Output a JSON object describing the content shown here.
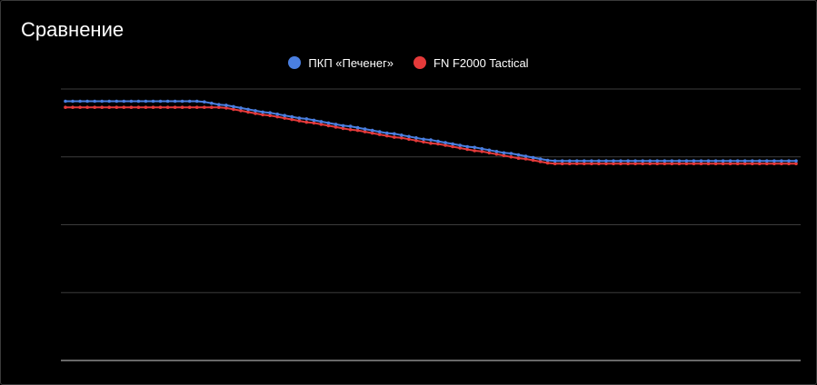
{
  "header": {
    "title": "Сравнение"
  },
  "chart_data": {
    "type": "line",
    "title": "Сравнение",
    "xlabel": "",
    "ylabel": "",
    "ylim": [
      0,
      4
    ],
    "grid": true,
    "legend": "top-center",
    "x": [
      0,
      1,
      2,
      3,
      4,
      5,
      6,
      7,
      8,
      9,
      10,
      11,
      12,
      13,
      14,
      15,
      16,
      17,
      18,
      19,
      20,
      21,
      22,
      23,
      24,
      25,
      26,
      27,
      28,
      29,
      30,
      31,
      32,
      33,
      34,
      35,
      36,
      37,
      38,
      39,
      40,
      41,
      42,
      43,
      44,
      45,
      46,
      47,
      48,
      49,
      50,
      51,
      52,
      53,
      54,
      55,
      56,
      57,
      58,
      59,
      60,
      61,
      62,
      63,
      64,
      65,
      66,
      67,
      68,
      69,
      70,
      71,
      72,
      73,
      74,
      75,
      76,
      77,
      78,
      79,
      80,
      81,
      82,
      83,
      84,
      85,
      86,
      87,
      88,
      89,
      90,
      91,
      92,
      93,
      94,
      95,
      96,
      97,
      98,
      99,
      100
    ],
    "series": [
      {
        "name": "ПКП «Печенег»",
        "color": "#4a7fe0",
        "values": [
          3.82,
          3.82,
          3.82,
          3.82,
          3.82,
          3.82,
          3.82,
          3.82,
          3.82,
          3.82,
          3.82,
          3.82,
          3.82,
          3.82,
          3.82,
          3.82,
          3.82,
          3.82,
          3.82,
          3.81,
          3.79,
          3.77,
          3.76,
          3.74,
          3.72,
          3.7,
          3.68,
          3.66,
          3.65,
          3.63,
          3.61,
          3.59,
          3.57,
          3.56,
          3.54,
          3.52,
          3.5,
          3.48,
          3.46,
          3.45,
          3.43,
          3.41,
          3.39,
          3.37,
          3.35,
          3.34,
          3.32,
          3.3,
          3.28,
          3.26,
          3.25,
          3.23,
          3.21,
          3.19,
          3.17,
          3.15,
          3.14,
          3.12,
          3.1,
          3.08,
          3.06,
          3.05,
          3.03,
          3.01,
          2.99,
          2.97,
          2.95,
          2.94,
          2.94,
          2.94,
          2.94,
          2.94,
          2.94,
          2.94,
          2.94,
          2.94,
          2.94,
          2.94,
          2.94,
          2.94,
          2.94,
          2.94,
          2.94,
          2.94,
          2.94,
          2.94,
          2.94,
          2.94,
          2.94,
          2.94,
          2.94,
          2.94,
          2.94,
          2.94,
          2.94,
          2.94,
          2.94,
          2.94,
          2.94,
          2.94,
          2.94
        ]
      },
      {
        "name": "FN F2000 Tactical",
        "color": "#e53a3a",
        "values": [
          3.73,
          3.73,
          3.73,
          3.73,
          3.73,
          3.73,
          3.73,
          3.73,
          3.73,
          3.73,
          3.73,
          3.73,
          3.73,
          3.73,
          3.73,
          3.73,
          3.73,
          3.73,
          3.73,
          3.73,
          3.73,
          3.73,
          3.72,
          3.7,
          3.68,
          3.66,
          3.64,
          3.62,
          3.61,
          3.59,
          3.57,
          3.55,
          3.53,
          3.51,
          3.5,
          3.48,
          3.46,
          3.44,
          3.42,
          3.4,
          3.39,
          3.37,
          3.35,
          3.33,
          3.31,
          3.29,
          3.28,
          3.26,
          3.24,
          3.22,
          3.2,
          3.19,
          3.17,
          3.15,
          3.13,
          3.11,
          3.09,
          3.08,
          3.06,
          3.04,
          3.02,
          3.0,
          2.98,
          2.97,
          2.95,
          2.93,
          2.91,
          2.9,
          2.9,
          2.9,
          2.9,
          2.9,
          2.9,
          2.9,
          2.9,
          2.9,
          2.9,
          2.9,
          2.9,
          2.9,
          2.9,
          2.9,
          2.9,
          2.9,
          2.9,
          2.9,
          2.9,
          2.9,
          2.9,
          2.9,
          2.9,
          2.9,
          2.9,
          2.9,
          2.9,
          2.9,
          2.9,
          2.9,
          2.9,
          2.9,
          2.9
        ]
      }
    ]
  }
}
